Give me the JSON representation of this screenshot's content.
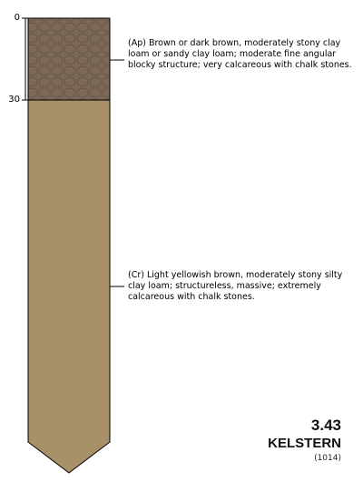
{
  "depth_axis": {
    "ticks": [
      {
        "label": "0"
      },
      {
        "label": "30"
      }
    ]
  },
  "horizons": [
    {
      "code": "Ap",
      "top_cm": 0,
      "bottom_cm": 30,
      "color": "#7b6858",
      "pattern": "stony-hexagonal",
      "description": "(Ap) Brown or dark brown, moderately stony clay loam or sandy clay loam; moderate fine angular blocky structure; very calcareous with chalk stones."
    },
    {
      "code": "Cr",
      "top_cm": 30,
      "bottom_cm": null,
      "color": "#a89068",
      "pattern": "plain",
      "description": "(Cr) Light yellowish brown, moderately stony silty clay loam; structureless, massive; extremely calcareous with chalk stones."
    }
  ],
  "soil": {
    "code": "3.43",
    "name": "KELSTERN",
    "reference": "(1014)"
  }
}
